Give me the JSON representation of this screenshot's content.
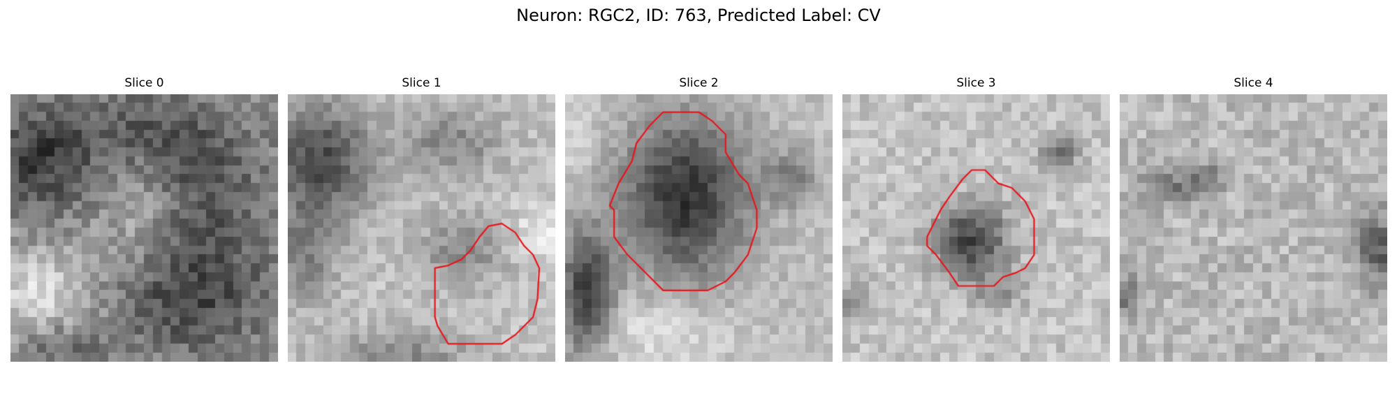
{
  "figure": {
    "title": "Neuron: RGC2, ID: 763, Predicted Label: CV"
  },
  "colors": {
    "contour": "#e8141a",
    "background": "#ffffff"
  },
  "slices": [
    {
      "label": "Slice 0",
      "contour": "none"
    },
    {
      "label": "Slice 1",
      "contour": "lower-right region"
    },
    {
      "label": "Slice 2",
      "contour": "large central dark blob"
    },
    {
      "label": "Slice 3",
      "contour": "small central dark blob"
    },
    {
      "label": "Slice 4",
      "contour": "none"
    }
  ]
}
